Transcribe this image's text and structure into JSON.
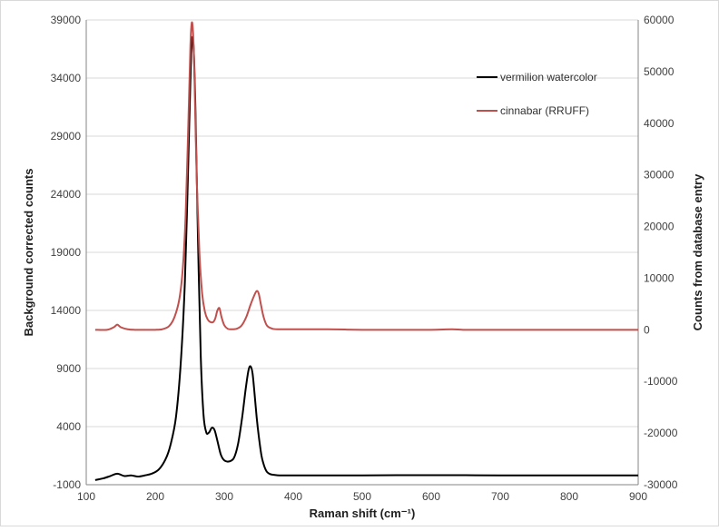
{
  "chart_data": {
    "type": "line",
    "title": "",
    "xlabel": "Raman shift (cm⁻¹)",
    "ylabel_left": "Background corrected counts",
    "ylabel_right": "Counts from database entry",
    "xlim": [
      100,
      900
    ],
    "ylim_left": [
      -1000,
      39000
    ],
    "ylim_right": [
      -30000,
      60000
    ],
    "x_ticks": [
      100,
      200,
      300,
      400,
      500,
      600,
      700,
      800,
      900
    ],
    "y_left_ticks": [
      -1000,
      4000,
      9000,
      14000,
      19000,
      24000,
      29000,
      34000,
      39000
    ],
    "y_right_ticks": [
      -30000,
      -20000,
      -10000,
      0,
      10000,
      20000,
      30000,
      40000,
      50000,
      60000
    ],
    "grid": "horizontal",
    "legend_position": "top-right",
    "series": [
      {
        "name": "vermilion watercolor",
        "axis": "left",
        "color": "#000000",
        "x": [
          113,
          125,
          135,
          145,
          155,
          165,
          175,
          185,
          195,
          205,
          215,
          222,
          230,
          237,
          243,
          248,
          252,
          255,
          258,
          262,
          266,
          270,
          274,
          278,
          282,
          286,
          290,
          295,
          300,
          307,
          314,
          320,
          326,
          331,
          335,
          338,
          341,
          344,
          347,
          350,
          354,
          358,
          362,
          367,
          372,
          380,
          390,
          400,
          450,
          500,
          550,
          600,
          650,
          700,
          800,
          900
        ],
        "y": [
          -600,
          -450,
          -250,
          -50,
          -250,
          -200,
          -300,
          -200,
          -50,
          300,
          1200,
          2400,
          4800,
          9500,
          16500,
          27000,
          36000,
          37200,
          32000,
          20000,
          10000,
          5000,
          3500,
          3500,
          3900,
          3700,
          2800,
          1600,
          1100,
          1000,
          1300,
          2500,
          4800,
          7200,
          8800,
          9200,
          8600,
          6800,
          4800,
          3200,
          1500,
          600,
          100,
          -100,
          -150,
          -200,
          -200,
          -200,
          -200,
          -200,
          -180,
          -180,
          -180,
          -200,
          -200,
          -200
        ]
      },
      {
        "name": "cinnabar (RRUFF)",
        "axis": "right",
        "color": "#c0504d",
        "x": [
          113,
          130,
          140,
          145,
          150,
          160,
          170,
          180,
          190,
          200,
          210,
          220,
          228,
          235,
          240,
          244,
          248,
          251,
          253,
          255,
          257,
          260,
          264,
          268,
          272,
          276,
          280,
          284,
          287,
          290,
          293,
          296,
          300,
          305,
          310,
          318,
          325,
          332,
          338,
          343,
          347,
          350,
          353,
          357,
          362,
          370,
          380,
          400,
          450,
          500,
          550,
          600,
          630,
          650,
          700,
          800,
          900
        ],
        "y": [
          0,
          0,
          500,
          1000,
          500,
          100,
          0,
          0,
          0,
          0,
          100,
          700,
          2500,
          6000,
          12000,
          22000,
          40000,
          55000,
          59500,
          57000,
          48000,
          30000,
          15000,
          7000,
          3500,
          2000,
          1500,
          1500,
          2200,
          3700,
          4200,
          2500,
          900,
          200,
          100,
          200,
          800,
          2500,
          4800,
          6500,
          7500,
          7000,
          5000,
          2500,
          800,
          200,
          100,
          100,
          100,
          0,
          0,
          0,
          100,
          0,
          0,
          0,
          0
        ]
      }
    ]
  }
}
